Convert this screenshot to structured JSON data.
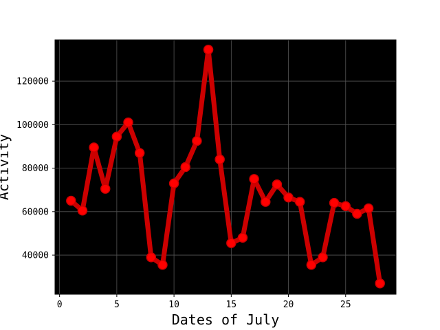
{
  "chart_data": {
    "type": "line",
    "title": "",
    "xlabel": "Dates of July",
    "ylabel": "Activity",
    "xlim": [
      -0.4,
      29.4
    ],
    "ylim": [
      22000,
      139000
    ],
    "x_ticks": [
      0,
      5,
      10,
      15,
      20,
      25
    ],
    "y_ticks": [
      40000,
      60000,
      80000,
      100000,
      120000
    ],
    "grid": true,
    "background_color": "#000000",
    "grid_color": "#555555",
    "series": [
      {
        "color": "#cc0000",
        "marker_color": "#ff0000",
        "x": [
          1,
          2,
          3,
          4,
          5,
          6,
          7,
          8,
          9,
          10,
          11,
          12,
          13,
          14,
          15,
          16,
          17,
          18,
          19,
          20,
          21,
          22,
          23,
          24,
          25,
          26,
          27,
          28
        ],
        "values": [
          65000,
          60500,
          89500,
          70500,
          94500,
          101000,
          87000,
          39000,
          35500,
          73000,
          80500,
          92500,
          134500,
          84000,
          45500,
          48000,
          75000,
          64500,
          72500,
          66500,
          64500,
          35500,
          39000,
          64000,
          62500,
          59000,
          61500,
          27000
        ]
      }
    ]
  }
}
